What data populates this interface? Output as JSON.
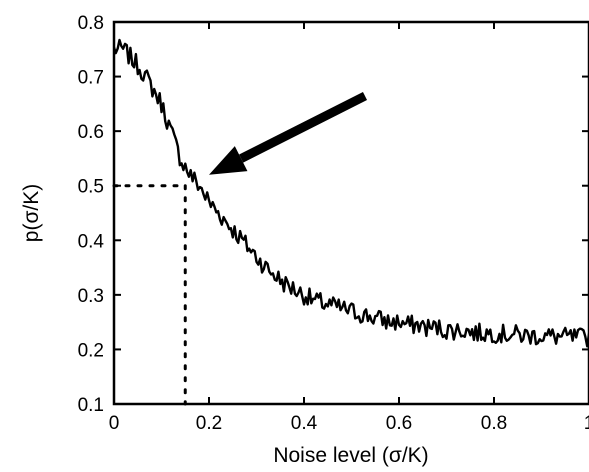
{
  "chart_data": {
    "type": "line",
    "xlabel": "Noise level (σ/K)",
    "ylabel": "p(σ/K)",
    "xlim": [
      0,
      1
    ],
    "ylim": [
      0.1,
      0.8
    ],
    "x_ticks": [
      0,
      0.2,
      0.4,
      0.6,
      0.8,
      1
    ],
    "x_tick_labels": [
      "0",
      "0.2",
      "0.4",
      "0.6",
      "0.8",
      "1"
    ],
    "y_ticks": [
      0.1,
      0.2,
      0.3,
      0.4,
      0.5,
      0.6,
      0.7,
      0.8
    ],
    "y_tick_labels": [
      "0.1",
      "0.2",
      "0.3",
      "0.4",
      "0.5",
      "0.6",
      "0.7",
      "0.8"
    ],
    "grid": false,
    "series": [
      {
        "color": "#000000",
        "style": "noisy",
        "x": [
          0,
          0.02,
          0.04,
          0.06,
          0.08,
          0.1,
          0.12,
          0.14,
          0.16,
          0.18,
          0.2,
          0.22,
          0.24,
          0.26,
          0.28,
          0.3,
          0.32,
          0.34,
          0.36,
          0.38,
          0.4,
          0.42,
          0.44,
          0.46,
          0.48,
          0.5,
          0.52,
          0.54,
          0.56,
          0.58,
          0.6,
          0.62,
          0.64,
          0.66,
          0.68,
          0.7,
          0.72,
          0.74,
          0.76,
          0.78,
          0.8,
          0.82,
          0.84,
          0.86,
          0.88,
          0.9,
          0.92,
          0.94,
          0.96,
          0.98,
          1.0
        ],
        "y": [
          0.75,
          0.75,
          0.73,
          0.71,
          0.68,
          0.65,
          0.6,
          0.55,
          0.52,
          0.5,
          0.47,
          0.45,
          0.43,
          0.41,
          0.39,
          0.37,
          0.35,
          0.335,
          0.32,
          0.31,
          0.3,
          0.29,
          0.285,
          0.28,
          0.275,
          0.27,
          0.265,
          0.26,
          0.255,
          0.25,
          0.25,
          0.245,
          0.245,
          0.24,
          0.24,
          0.235,
          0.235,
          0.235,
          0.23,
          0.23,
          0.23,
          0.228,
          0.228,
          0.226,
          0.225,
          0.225,
          0.224,
          0.223,
          0.222,
          0.222,
          0.222
        ]
      }
    ],
    "reference_point": {
      "x": 0.15,
      "y": 0.5
    },
    "annotations": [
      {
        "type": "arrow",
        "points_to": {
          "x": 0.2,
          "y": 0.52
        }
      }
    ]
  }
}
